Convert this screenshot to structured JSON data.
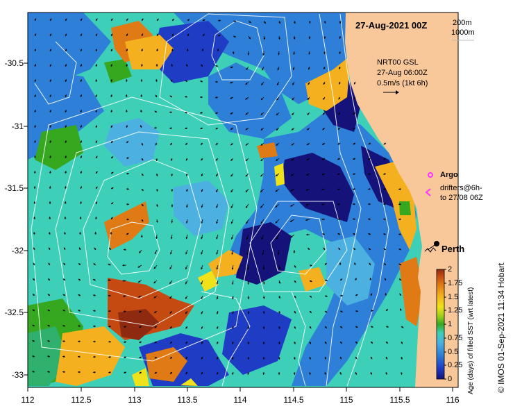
{
  "map": {
    "title": "27-Aug-2021 00Z",
    "depth_legend": [
      "200m",
      "1000m"
    ],
    "product_label": "NRT00 GSL",
    "product_time": "27-Aug 06:00Z",
    "scale_label": "0.5m/s (1kt 6h)",
    "argo_label": "Argo",
    "drifters_label_1": "drifters@6h-",
    "drifters_label_2": "to 27/08 06Z",
    "city_label": "Perth",
    "x_ticks": [
      "112",
      "112.5",
      "113",
      "113.5",
      "114",
      "114.5",
      "115",
      "115.5",
      "116"
    ],
    "y_ticks": [
      "-30.5",
      "-31",
      "-31.5",
      "-32",
      "-32.5",
      "-33"
    ],
    "colorbar_ticks": [
      "2",
      "1.75",
      "1.5",
      "1.25",
      "1",
      "0.75",
      "0.5",
      "0.25",
      "0"
    ],
    "colorbar_title": "Age (days) of filled SST (wrt latest)",
    "credit": "© IMOS 01-Sep-2021 11:34 Hobart",
    "colors": {
      "land": "#f8c89a",
      "age_scale": [
        "#15127a",
        "#1f3cc4",
        "#2e7fd8",
        "#4cb0e0",
        "#3ecfb8",
        "#2fb06c",
        "#36a820",
        "#a6d21c",
        "#f0e21a",
        "#f4b01e",
        "#e07a14",
        "#c44a12",
        "#8e2a10"
      ]
    }
  }
}
